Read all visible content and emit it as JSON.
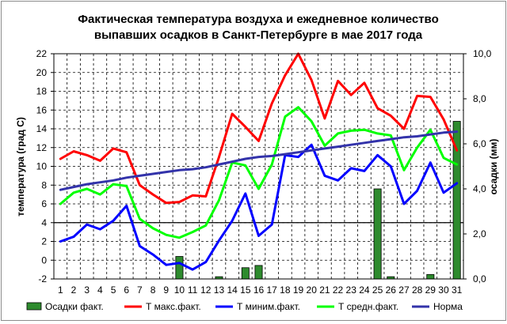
{
  "chart_data": {
    "type": "line",
    "title_line1": "Фактическая температура воздуха и ежедневное количество",
    "title_line2": "выпавших осадков в Санкт-Петербурге  в мае 2017 года",
    "ylabel_left": "температура (град С)",
    "ylabel_right": "осадки (мм)",
    "ylim_left": [
      -2,
      22
    ],
    "ylim_right": [
      0,
      10
    ],
    "yticks_left": [
      "-2",
      "0",
      "2",
      "4",
      "6",
      "8",
      "10",
      "12",
      "14",
      "16",
      "18",
      "20",
      "22"
    ],
    "yticks_right": [
      "0,0",
      "2,0",
      "4,0",
      "6,0",
      "8,0",
      "10,0"
    ],
    "x": [
      "1",
      "2",
      "3",
      "4",
      "5",
      "6",
      "7",
      "8",
      "9",
      "10",
      "11",
      "12",
      "13",
      "14",
      "15",
      "16",
      "17",
      "18",
      "19",
      "20",
      "21",
      "22",
      "23",
      "24",
      "25",
      "26",
      "27",
      "28",
      "29",
      "30",
      "31"
    ],
    "bars": {
      "name": "Осадки факт.",
      "color": "#2e8b2e",
      "values": [
        0,
        0,
        0,
        0,
        0,
        0,
        0,
        0,
        0,
        1.0,
        0,
        0,
        0.1,
        0,
        0.5,
        0.6,
        0,
        0,
        0,
        0,
        0,
        0,
        0,
        0,
        4.0,
        0.1,
        0,
        0,
        0.2,
        0,
        7.0
      ]
    },
    "series": [
      {
        "name": "Т макс.факт.",
        "color": "#ff0000",
        "values": [
          10.8,
          11.6,
          11.2,
          10.6,
          11.9,
          11.5,
          8.0,
          7.0,
          6.1,
          6.2,
          6.9,
          6.8,
          11.0,
          15.6,
          14.2,
          12.7,
          16.7,
          19.7,
          22.0,
          19.2,
          15.1,
          19.1,
          17.6,
          18.9,
          16.2,
          15.4,
          14.0,
          17.5,
          17.4,
          15.0,
          11.7
        ]
      },
      {
        "name": "Т миним.факт.",
        "color": "#0000ff",
        "values": [
          2.0,
          2.5,
          3.8,
          3.3,
          4.2,
          5.8,
          1.5,
          0.6,
          -0.5,
          -0.3,
          -1.0,
          -0.2,
          2.1,
          4.2,
          7.1,
          2.6,
          3.8,
          11.2,
          11.0,
          12.3,
          9.0,
          8.5,
          9.8,
          9.5,
          11.2,
          10.0,
          6.0,
          7.4,
          10.4,
          7.2,
          8.2
        ]
      },
      {
        "name": "Т средн.факт.",
        "color": "#00ff00",
        "values": [
          6.0,
          7.2,
          7.6,
          7.0,
          8.1,
          7.9,
          4.4,
          3.4,
          2.7,
          2.4,
          3.0,
          3.7,
          6.4,
          10.4,
          10.1,
          7.6,
          10.2,
          15.3,
          16.3,
          14.8,
          12.2,
          13.5,
          13.8,
          13.9,
          13.5,
          13.3,
          9.6,
          12.0,
          13.9,
          10.9,
          10.2
        ]
      },
      {
        "name": "Норма",
        "color": "#3333aa",
        "values": [
          7.5,
          7.8,
          8.1,
          8.3,
          8.5,
          8.8,
          9.0,
          9.2,
          9.4,
          9.6,
          9.7,
          9.9,
          10.2,
          10.5,
          10.8,
          11.0,
          11.1,
          11.3,
          11.5,
          11.7,
          11.9,
          12.1,
          12.3,
          12.5,
          12.7,
          12.9,
          13.1,
          13.2,
          13.4,
          13.6,
          13.7
        ]
      }
    ],
    "legend_position": "bottom",
    "grid": true
  }
}
